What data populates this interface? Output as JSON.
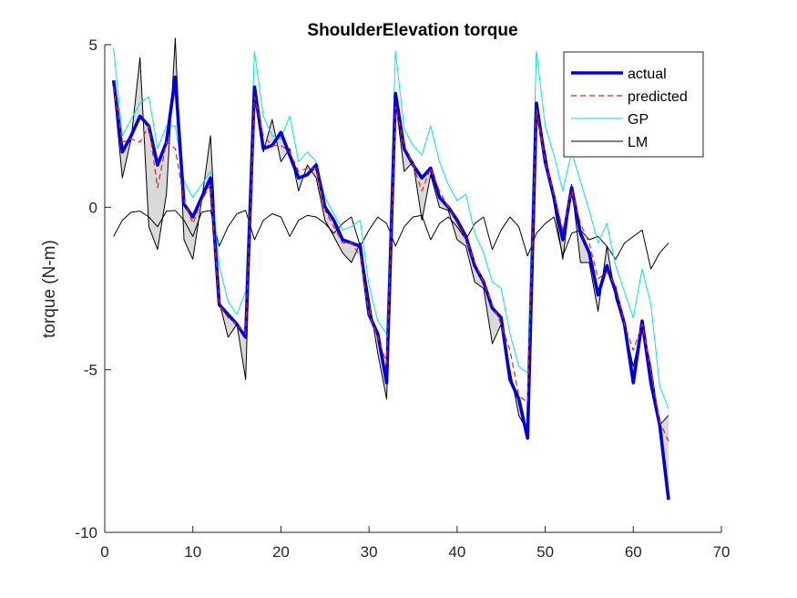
{
  "chart_data": {
    "type": "line",
    "title": "ShoulderElevation torque",
    "xlabel": "",
    "ylabel": "torque (N-m)",
    "xlim": [
      0,
      70
    ],
    "ylim": [
      -10,
      5
    ],
    "xticks": [
      "0",
      "10",
      "20",
      "30",
      "40",
      "50",
      "60",
      "70"
    ],
    "yticks": [
      "5",
      "0",
      "-5",
      "-10"
    ],
    "grid": false,
    "legend_position": "top-right",
    "band": {
      "between": [
        "actual",
        "LM"
      ],
      "fill": "#d9d9d9"
    },
    "series": [
      {
        "name": "actual",
        "color": "#0000dd",
        "style": "solid-thick",
        "x": [
          1,
          2,
          3,
          4,
          5,
          6,
          7,
          8,
          9,
          10,
          11,
          12,
          13,
          14,
          15,
          16,
          17,
          18,
          19,
          20,
          21,
          22,
          23,
          24,
          25,
          26,
          27,
          28,
          29,
          30,
          31,
          32,
          33,
          34,
          35,
          36,
          37,
          38,
          39,
          40,
          41,
          42,
          43,
          44,
          45,
          46,
          47,
          48,
          49,
          50,
          51,
          52,
          53,
          54,
          55,
          56,
          57,
          58,
          59,
          60,
          61,
          62,
          63,
          64
        ],
        "values": [
          3.9,
          1.7,
          2.2,
          2.8,
          2.5,
          1.3,
          2.0,
          4.0,
          0.1,
          -0.3,
          0.3,
          0.9,
          -3.0,
          -3.3,
          -3.6,
          -4.0,
          3.7,
          1.8,
          1.9,
          2.3,
          1.6,
          0.9,
          1.0,
          1.3,
          0.0,
          -0.4,
          -1.0,
          -1.1,
          -1.2,
          -3.3,
          -3.9,
          -5.4,
          3.5,
          1.8,
          1.3,
          0.9,
          1.2,
          0.3,
          0.0,
          -0.4,
          -0.9,
          -1.8,
          -2.3,
          -3.1,
          -3.4,
          -5.3,
          -5.9,
          -7.1,
          3.2,
          1.4,
          0.3,
          -1.0,
          0.6,
          -0.8,
          -1.4,
          -2.7,
          -1.8,
          -2.6,
          -3.6,
          -5.4,
          -3.5,
          -5.4,
          -6.7,
          -9.0
        ]
      },
      {
        "name": "predicted",
        "color": "#e8201b",
        "style": "dashed",
        "x": [
          1,
          2,
          3,
          4,
          5,
          6,
          7,
          8,
          9,
          10,
          11,
          12,
          13,
          14,
          15,
          16,
          17,
          18,
          19,
          20,
          21,
          22,
          23,
          24,
          25,
          26,
          27,
          28,
          29,
          30,
          31,
          32,
          33,
          34,
          35,
          36,
          37,
          38,
          39,
          40,
          41,
          42,
          43,
          44,
          45,
          46,
          47,
          48,
          49,
          50,
          51,
          52,
          53,
          54,
          55,
          56,
          57,
          58,
          59,
          60,
          61,
          62,
          63,
          64
        ],
        "values": [
          3.7,
          2.0,
          2.1,
          2.0,
          2.5,
          0.6,
          2.0,
          1.8,
          0.2,
          -0.5,
          0.2,
          0.7,
          -3.0,
          -3.4,
          -3.6,
          -3.9,
          3.4,
          2.2,
          1.9,
          1.9,
          1.7,
          1.1,
          1.2,
          1.2,
          -0.1,
          -0.6,
          -1.1,
          -1.1,
          -1.5,
          -3.3,
          -4.0,
          -4.8,
          3.1,
          1.9,
          1.3,
          0.5,
          1.2,
          0.5,
          0.0,
          -0.5,
          -1.0,
          -1.7,
          -2.3,
          -3.0,
          -3.6,
          -4.4,
          -5.8,
          -6.0,
          3.0,
          1.4,
          0.4,
          -0.7,
          0.5,
          -0.5,
          -1.1,
          -2.2,
          -2.0,
          -2.4,
          -3.6,
          -4.4,
          -3.6,
          -5.0,
          -6.6,
          -7.2
        ]
      },
      {
        "name": "GP",
        "color": "#00e6e6",
        "style": "solid-thin",
        "x": [
          1,
          2,
          3,
          4,
          5,
          6,
          7,
          8,
          9,
          10,
          11,
          12,
          13,
          14,
          15,
          16,
          17,
          18,
          19,
          20,
          21,
          22,
          23,
          24,
          25,
          26,
          27,
          28,
          29,
          30,
          31,
          32,
          33,
          34,
          35,
          36,
          37,
          38,
          39,
          40,
          41,
          42,
          43,
          44,
          45,
          46,
          47,
          48,
          49,
          50,
          51,
          52,
          53,
          54,
          55,
          56,
          57,
          58,
          59,
          60,
          61,
          62,
          63,
          64
        ],
        "values": [
          4.9,
          2.2,
          2.7,
          3.2,
          3.4,
          1.8,
          2.5,
          2.5,
          0.8,
          0.3,
          0.7,
          1.1,
          -1.8,
          -2.9,
          -3.3,
          -2.6,
          4.8,
          2.8,
          2.2,
          2.1,
          2.8,
          1.4,
          1.7,
          1.4,
          0.3,
          -0.2,
          -0.7,
          -0.6,
          -0.4,
          -2.4,
          -3.5,
          -3.9,
          4.8,
          2.4,
          1.9,
          1.6,
          2.5,
          1.4,
          0.7,
          0.2,
          0.4,
          -0.8,
          -1.4,
          -2.3,
          -2.5,
          -3.9,
          -4.9,
          -5.1,
          4.8,
          2.5,
          1.6,
          0.5,
          1.7,
          0.8,
          -0.1,
          -1.1,
          -0.5,
          -1.8,
          -2.6,
          -3.4,
          -1.9,
          -3.0,
          -5.5,
          -6.2
        ]
      },
      {
        "name": "LM",
        "color": "#000000",
        "style": "solid-thin",
        "x": [
          1,
          2,
          3,
          4,
          5,
          6,
          7,
          8,
          9,
          10,
          11,
          12,
          13,
          14,
          15,
          16,
          17,
          18,
          19,
          20,
          21,
          22,
          23,
          24,
          25,
          26,
          27,
          28,
          29,
          30,
          31,
          32,
          33,
          34,
          35,
          36,
          37,
          38,
          39,
          40,
          41,
          42,
          43,
          44,
          45,
          46,
          47,
          48,
          49,
          50,
          51,
          52,
          53,
          54,
          55,
          56,
          57,
          58,
          59,
          60,
          61,
          62,
          63,
          64
        ],
        "values": [
          3.7,
          0.9,
          2.1,
          4.6,
          -0.6,
          -1.3,
          0.4,
          5.2,
          -1.0,
          -1.6,
          0.2,
          2.2,
          -2.9,
          -4.0,
          -3.6,
          -5.3,
          3.4,
          1.7,
          2.7,
          1.4,
          1.8,
          0.5,
          1.3,
          0.9,
          -0.4,
          -0.9,
          -1.4,
          -1.7,
          -1.1,
          -2.8,
          -4.5,
          -5.9,
          3.3,
          1.1,
          1.4,
          -0.4,
          1.0,
          0.0,
          -0.1,
          -1.0,
          -1.2,
          -2.3,
          -2.5,
          -4.2,
          -3.6,
          -5.0,
          -6.4,
          -6.9,
          2.8,
          1.7,
          0.1,
          -1.6,
          0.7,
          -1.7,
          -1.7,
          -3.2,
          -1.2,
          -2.8,
          -3.7,
          -4.9,
          -3.6,
          -4.9,
          -6.7,
          -6.4
        ]
      },
      {
        "name": "LM-smooth",
        "color": "#000000",
        "style": "solid-thin",
        "x": [
          1,
          2,
          3,
          4,
          5,
          6,
          7,
          8,
          9,
          10,
          11,
          12,
          13,
          14,
          15,
          16,
          17,
          18,
          19,
          20,
          21,
          22,
          23,
          24,
          25,
          26,
          27,
          28,
          29,
          30,
          31,
          32,
          33,
          34,
          35,
          36,
          37,
          38,
          39,
          40,
          41,
          42,
          43,
          44,
          45,
          46,
          47,
          48,
          49,
          50,
          51,
          52,
          53,
          54,
          55,
          56,
          57,
          58,
          59,
          60,
          61,
          62,
          63,
          64
        ],
        "values": [
          -0.9,
          -0.4,
          -0.15,
          -0.12,
          -0.3,
          -0.6,
          -0.12,
          -0.1,
          -0.4,
          -0.9,
          -0.15,
          -0.1,
          -1.2,
          -0.6,
          -0.2,
          -0.1,
          -1.0,
          -0.4,
          -0.2,
          -0.3,
          -0.9,
          -0.4,
          -0.25,
          -0.3,
          -0.5,
          -0.8,
          -0.5,
          -0.3,
          -1.2,
          -0.7,
          -0.3,
          -0.5,
          -1.2,
          -0.6,
          -0.3,
          -0.25,
          -1.0,
          -0.5,
          -0.3,
          -0.6,
          -1.0,
          -0.5,
          -0.3,
          -1.3,
          -0.7,
          -0.3,
          -0.6,
          -1.5,
          -0.8,
          -0.5,
          -0.3,
          -1.5,
          -0.8,
          -0.7,
          -1.0,
          -0.9,
          -1.2,
          -1.6,
          -1.1,
          -0.9,
          -0.7,
          -1.9,
          -1.4,
          -1.1
        ]
      }
    ],
    "legend": [
      "actual",
      "predicted",
      "GP",
      "LM"
    ]
  }
}
